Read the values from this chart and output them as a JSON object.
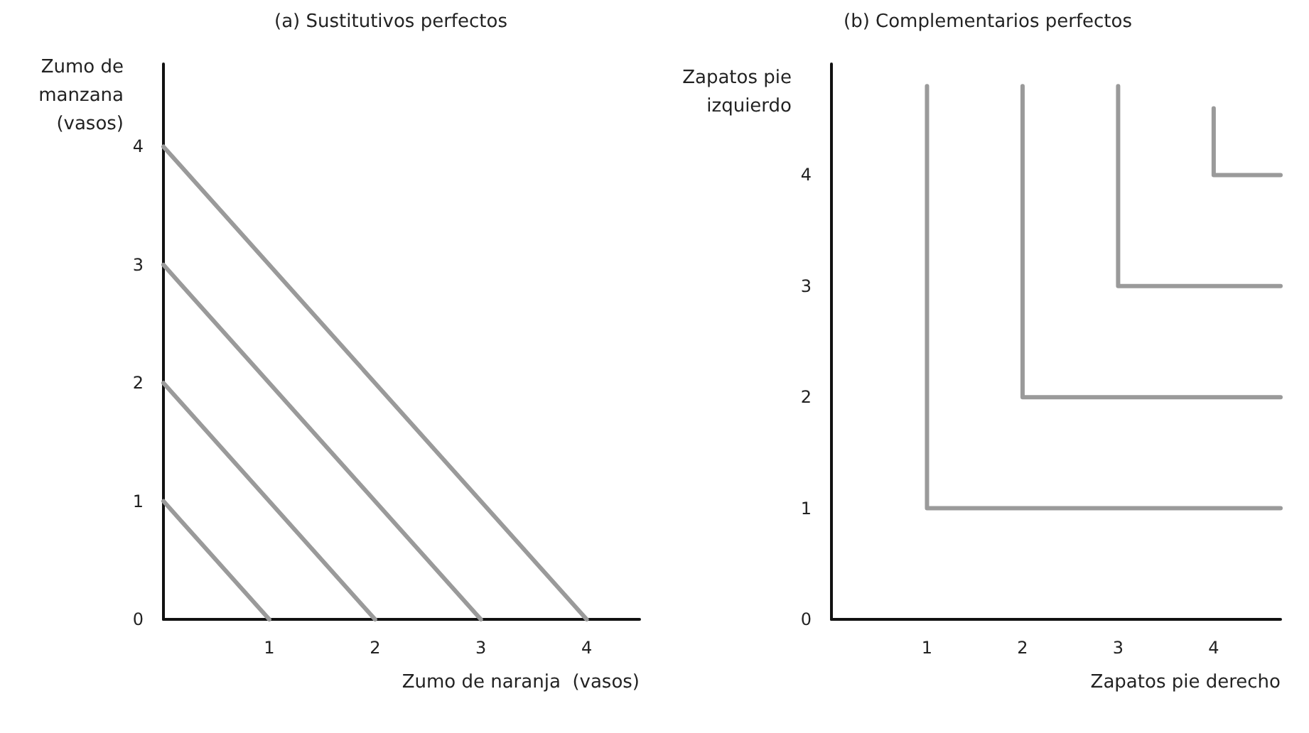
{
  "chart_data": [
    {
      "type": "line",
      "title": "(a) Sustitutivos perfectos",
      "xlabel": "Zumo de naranja  (vasos)",
      "ylabel": "Zumo de\nmanzana\n(vasos)",
      "xlim": [
        0,
        4.5
      ],
      "ylim": [
        0,
        4.7
      ],
      "xticks": [
        1,
        2,
        3,
        4
      ],
      "yticks": [
        0,
        1,
        2,
        3,
        4
      ],
      "grid": false,
      "marker": "none",
      "line_style": "solid",
      "series": [
        {
          "color": "#9a9a9a",
          "x": [
            0,
            1
          ],
          "values": [
            1,
            0
          ]
        },
        {
          "color": "#9a9a9a",
          "x": [
            0,
            2
          ],
          "values": [
            2,
            0
          ]
        },
        {
          "color": "#9a9a9a",
          "x": [
            0,
            3
          ],
          "values": [
            3,
            0
          ]
        },
        {
          "color": "#9a9a9a",
          "x": [
            0,
            4
          ],
          "values": [
            4,
            0
          ]
        }
      ]
    },
    {
      "type": "line",
      "title": "(b) Complementarios perfectos",
      "xlabel": "Zapatos pie derecho",
      "ylabel": "Zapatos pie\nizquierdo",
      "xlim": [
        0,
        4.7
      ],
      "ylim": [
        0,
        5
      ],
      "xticks": [
        1,
        2,
        3,
        4
      ],
      "yticks": [
        0,
        1,
        2,
        3,
        4
      ],
      "grid": false,
      "marker": "none",
      "line_style": "solid",
      "series": [
        {
          "color": "#9a9a9a",
          "x": [
            1,
            1,
            4.7
          ],
          "values": [
            4.8,
            1,
            1
          ]
        },
        {
          "color": "#9a9a9a",
          "x": [
            2,
            2,
            4.7
          ],
          "values": [
            4.8,
            2,
            2
          ]
        },
        {
          "color": "#9a9a9a",
          "x": [
            3,
            3,
            4.7
          ],
          "values": [
            4.8,
            3,
            3
          ]
        },
        {
          "color": "#9a9a9a",
          "x": [
            4,
            4,
            4.7
          ],
          "values": [
            4.6,
            4,
            4
          ]
        }
      ]
    }
  ]
}
